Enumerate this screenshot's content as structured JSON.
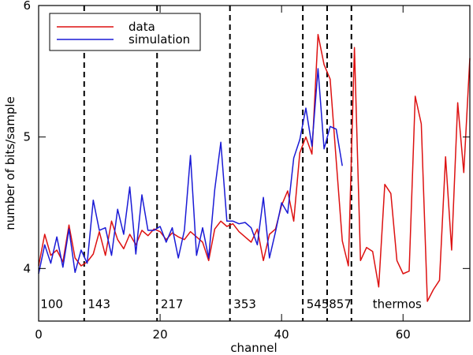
{
  "chart_data": {
    "type": "line",
    "title": "",
    "xlabel": "channel",
    "ylabel": "number of bits/sample",
    "xlim": [
      0,
      71
    ],
    "ylim": [
      3.6,
      6.0
    ],
    "xticks": [
      0,
      20,
      40,
      60
    ],
    "yticks": [
      4,
      5,
      6
    ],
    "legend_position": "top-left",
    "colors": {
      "data": "#dd1111",
      "simulation": "#1a1ad6",
      "divider": "#000000"
    },
    "series": [
      {
        "name": "data",
        "key": "data",
        "x": [
          0,
          1,
          2,
          3,
          4,
          5,
          6,
          7,
          8,
          9,
          10,
          11,
          12,
          13,
          14,
          15,
          16,
          17,
          18,
          19,
          20,
          21,
          22,
          23,
          24,
          25,
          26,
          27,
          28,
          29,
          30,
          31,
          32,
          33,
          34,
          35,
          36,
          37,
          38,
          39,
          40,
          41,
          42,
          43,
          44,
          45,
          46,
          47,
          48,
          49,
          50,
          51,
          52,
          53,
          54,
          55,
          56,
          57,
          58,
          59,
          60,
          61,
          62,
          63,
          64,
          65,
          66,
          67,
          68,
          69,
          70,
          71
        ],
        "y": [
          4.02,
          4.26,
          4.1,
          4.14,
          4.05,
          4.33,
          4.08,
          4.02,
          4.05,
          4.11,
          4.28,
          4.1,
          4.36,
          4.22,
          4.15,
          4.26,
          4.18,
          4.29,
          4.25,
          4.3,
          4.28,
          4.22,
          4.27,
          4.24,
          4.22,
          4.28,
          4.24,
          4.2,
          4.06,
          4.3,
          4.36,
          4.32,
          4.34,
          4.28,
          4.24,
          4.2,
          4.3,
          4.06,
          4.26,
          4.3,
          4.48,
          4.59,
          4.36,
          4.88,
          5.0,
          4.87,
          5.78,
          5.55,
          5.44,
          4.82,
          4.21,
          4.02,
          5.68,
          4.06,
          4.16,
          4.13,
          3.86,
          4.64,
          4.57,
          4.06,
          3.96,
          3.98,
          5.31,
          5.1,
          3.75,
          3.84,
          3.91,
          4.85,
          4.14,
          5.26,
          4.73,
          5.6
        ]
      },
      {
        "name": "simulation",
        "key": "simulation",
        "x": [
          0,
          1,
          2,
          3,
          4,
          5,
          6,
          7,
          8,
          9,
          10,
          11,
          12,
          13,
          14,
          15,
          16,
          17,
          18,
          19,
          20,
          21,
          22,
          23,
          24,
          25,
          26,
          27,
          28,
          29,
          30,
          31,
          32,
          33,
          34,
          35,
          36,
          37,
          38,
          39,
          40,
          41,
          42,
          43,
          44,
          45,
          46,
          47,
          48,
          49,
          50
        ],
        "y": [
          3.96,
          4.18,
          4.04,
          4.24,
          4.01,
          4.3,
          3.97,
          4.14,
          4.04,
          4.52,
          4.29,
          4.31,
          4.1,
          4.45,
          4.26,
          4.62,
          4.11,
          4.56,
          4.29,
          4.29,
          4.32,
          4.2,
          4.31,
          4.08,
          4.29,
          4.86,
          4.1,
          4.31,
          4.08,
          4.6,
          4.96,
          4.36,
          4.36,
          4.34,
          4.35,
          4.31,
          4.18,
          4.54,
          4.08,
          4.28,
          4.5,
          4.42,
          4.84,
          4.98,
          5.22,
          4.93,
          5.52,
          4.91,
          5.08,
          5.06,
          4.78
        ]
      }
    ],
    "dividers": [
      7.5,
      19.5,
      31.5,
      43.5,
      47.5,
      51.5
    ],
    "band_labels": [
      {
        "text": "100",
        "x": 0.3
      },
      {
        "text": "143",
        "x": 8.1
      },
      {
        "text": "217",
        "x": 20.1
      },
      {
        "text": "353",
        "x": 32.1
      },
      {
        "text": "545",
        "x": 44.1
      },
      {
        "text": "857",
        "x": 47.8
      },
      {
        "text": "thermos",
        "x": 55.0
      }
    ],
    "band_label_y": 3.73
  }
}
